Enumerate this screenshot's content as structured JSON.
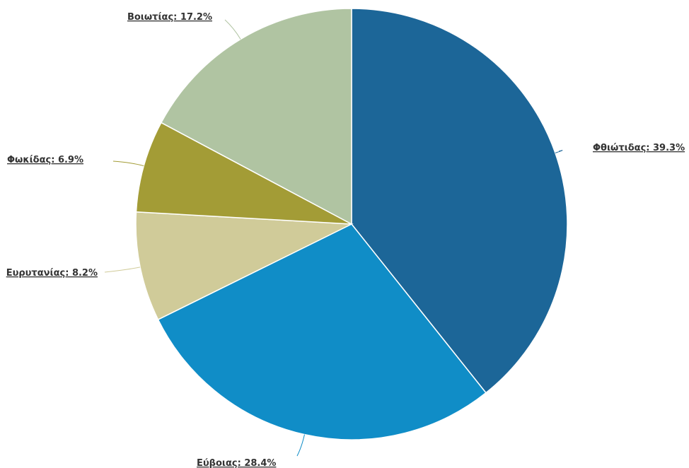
{
  "chart_data": {
    "type": "pie",
    "start_angle_deg": 0,
    "direction": "clockwise",
    "slices": [
      {
        "label": "Φθιώτιδας: 39.3%",
        "value": 39.3,
        "color": "#1c6698"
      },
      {
        "label": "Εύβοιας: 28.4%",
        "value": 28.4,
        "color": "#108dc7"
      },
      {
        "label": "Ευρυτανίας: 8.2%",
        "value": 8.2,
        "color": "#d0cb99"
      },
      {
        "label": "Φωκίδας: 6.9%",
        "value": 6.9,
        "color": "#a39c36"
      },
      {
        "label": "Βοιωτίας: 17.2%",
        "value": 17.2,
        "color": "#b0c4a2"
      }
    ]
  }
}
